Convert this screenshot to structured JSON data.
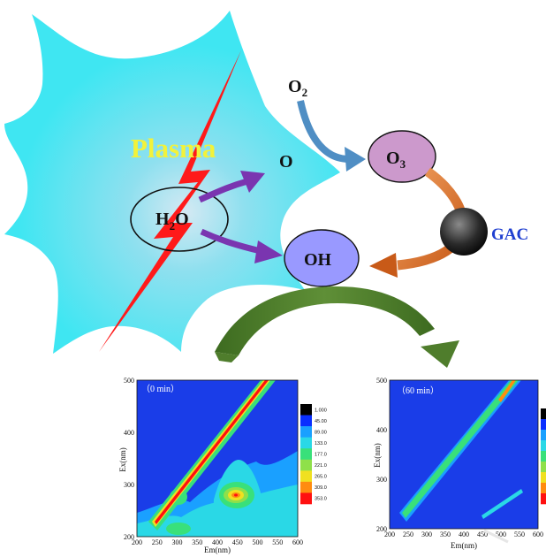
{
  "labels": {
    "plasma": "Plasma",
    "h2o": "H",
    "h2o_sub": "2",
    "h2o_end": "O",
    "o2": "O",
    "o2_sub": "2",
    "o_radical": "O",
    "o3": "O",
    "o3_sub": "3",
    "oh": "OH",
    "gac": "GAC"
  },
  "colors": {
    "plasma_fill": "#3fe6f2",
    "plasma_center": "#c9e8f2",
    "plasma_text": "#f2f23a",
    "lightning": "#ff1a1a",
    "purple_arrow": "#7a35b0",
    "blue_arrow": "#4f8ec4",
    "orange_arrow": "#e07a2c",
    "green_arrow": "#4f7d2c",
    "o3_fill": "#cc99cc",
    "oh_fill": "#9999ff",
    "gac_text": "#1f3fd0"
  },
  "chart_data": [
    {
      "type": "heatmap",
      "title": "（0 min）",
      "xlabel": "Em(nm)",
      "ylabel": "Ex(nm)",
      "xlim": [
        200,
        600
      ],
      "ylim": [
        200,
        500
      ],
      "xticks": [
        "200",
        "250",
        "300",
        "350",
        "400",
        "450",
        "500",
        "550",
        "600"
      ],
      "yticks": [
        "200",
        "300",
        "400",
        "500"
      ],
      "legend": [
        "1.000",
        "45.00",
        "89.00",
        "133.0",
        "177.0",
        "221.0",
        "265.0",
        "309.0",
        "353.0"
      ],
      "legend_colors": [
        "#000000",
        "#0a2fff",
        "#1aa0ff",
        "#2ad8e6",
        "#39e07a",
        "#8fe04a",
        "#f0e020",
        "#ff8c10",
        "#ff1010"
      ],
      "peaks": [
        {
          "em": 440,
          "ex": 275,
          "level": 353
        },
        {
          "em": 300,
          "ex": 275,
          "level": 177
        },
        {
          "em": 300,
          "ex": 230,
          "level": 133
        }
      ]
    },
    {
      "type": "heatmap",
      "title": "（60 min）",
      "xlabel": "Em(nm)",
      "ylabel": "Ex(nm)",
      "xlim": [
        200,
        600
      ],
      "ylim": [
        200,
        500
      ],
      "xticks": [
        "200",
        "250",
        "300",
        "350",
        "400",
        "450",
        "500",
        "550",
        "600"
      ],
      "yticks": [
        "200",
        "300",
        "400",
        "500"
      ],
      "legend_colors": [
        "#000000",
        "#0a2fff",
        "#1aa0ff",
        "#2ad8e6",
        "#39e07a",
        "#8fe04a",
        "#f0e020",
        "#ff8c10",
        "#ff1010"
      ]
    }
  ]
}
